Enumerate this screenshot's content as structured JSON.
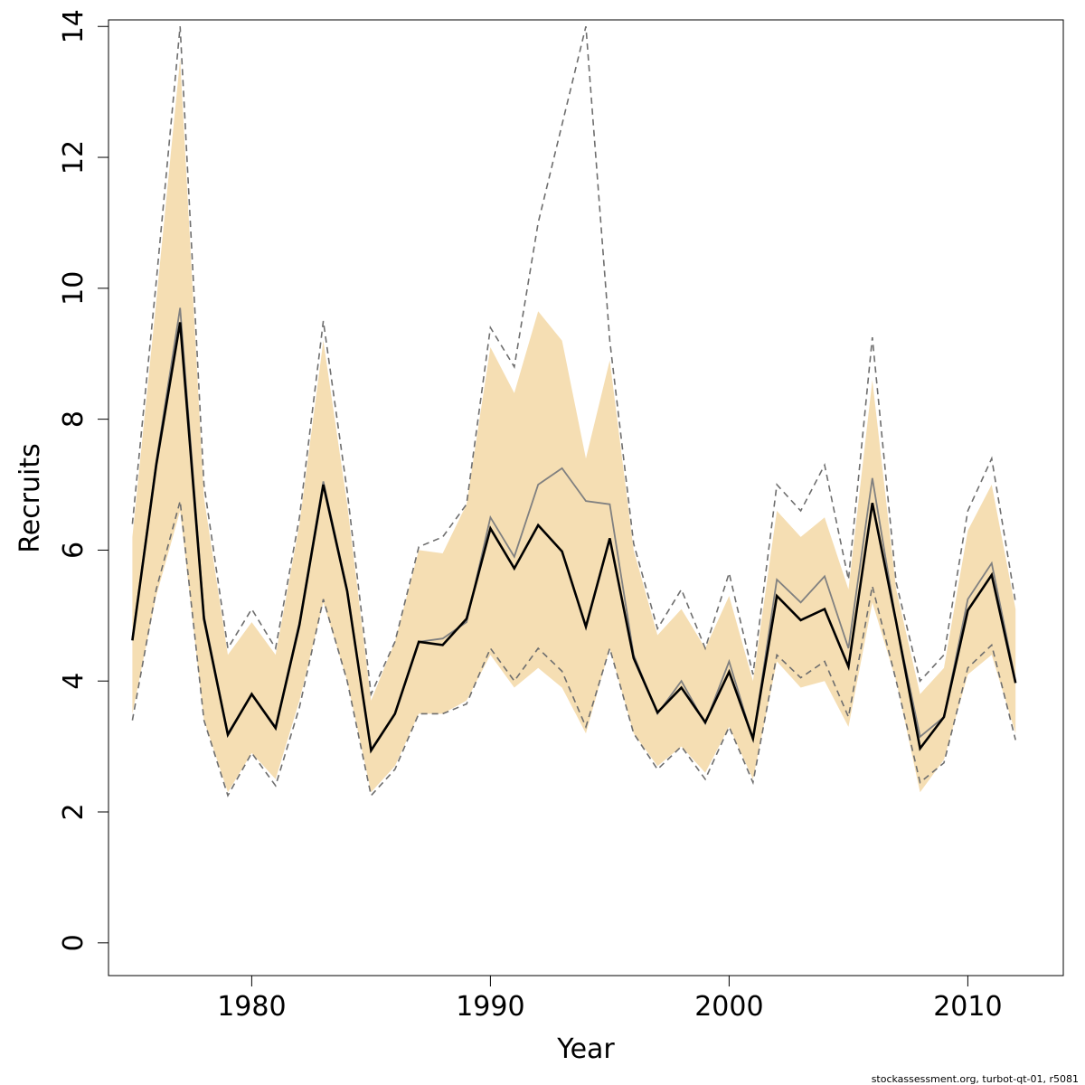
{
  "chart_data": {
    "type": "line",
    "title": "",
    "xlabel": "Year",
    "ylabel": "Recruits",
    "xlim": [
      1974,
      2014
    ],
    "ylim": [
      -0.5,
      14.1
    ],
    "x_ticks": [
      1980,
      1990,
      2000,
      2010
    ],
    "y_ticks": [
      0,
      2,
      4,
      6,
      8,
      10,
      12,
      14
    ],
    "grid": false,
    "legend": "none",
    "colors": {
      "band": "#f5deb3",
      "estimate": "#000000",
      "alt_estimate": "#808080",
      "dashed_bounds": "#6e6e6e"
    },
    "x": [
      1975,
      1976,
      1977,
      1978,
      1979,
      1980,
      1981,
      1982,
      1983,
      1984,
      1985,
      1986,
      1987,
      1988,
      1989,
      1990,
      1991,
      1992,
      1993,
      1994,
      1995,
      1996,
      1997,
      1998,
      1999,
      2000,
      2001,
      2002,
      2003,
      2004,
      2005,
      2006,
      2007,
      2008,
      2009,
      2010,
      2011,
      2012
    ],
    "series": [
      {
        "role": "band_upper",
        "values": [
          6.2,
          9.8,
          13.5,
          6.8,
          4.4,
          4.9,
          4.4,
          6.4,
          9.2,
          6.7,
          3.7,
          4.6,
          6.0,
          5.95,
          6.7,
          9.1,
          8.4,
          9.65,
          9.2,
          7.4,
          8.9,
          6.0,
          4.7,
          5.1,
          4.5,
          5.3,
          4.0,
          6.6,
          6.2,
          6.5,
          5.4,
          8.6,
          5.4,
          3.8,
          4.2,
          6.3,
          7.0,
          5.1
        ]
      },
      {
        "role": "band_lower",
        "values": [
          3.5,
          5.3,
          6.6,
          3.4,
          2.3,
          2.9,
          2.5,
          3.7,
          5.2,
          4.0,
          2.3,
          2.7,
          3.5,
          3.5,
          3.7,
          4.4,
          3.9,
          4.2,
          3.9,
          3.2,
          4.5,
          3.2,
          2.7,
          3.0,
          2.6,
          3.3,
          2.5,
          4.3,
          3.9,
          4.0,
          3.3,
          5.2,
          4.0,
          2.3,
          2.8,
          4.1,
          4.4,
          3.2
        ]
      },
      {
        "role": "upper_bound_dashed",
        "values": [
          6.4,
          10.1,
          14.0,
          7.0,
          4.5,
          5.1,
          4.5,
          6.5,
          9.5,
          6.9,
          3.8,
          4.6,
          6.05,
          6.2,
          6.7,
          9.4,
          8.8,
          11.0,
          12.5,
          14.0,
          9.2,
          6.1,
          4.8,
          5.4,
          4.5,
          5.65,
          4.1,
          7.0,
          6.6,
          7.3,
          5.55,
          9.25,
          5.5,
          4.0,
          4.4,
          6.6,
          7.4,
          5.2
        ]
      },
      {
        "role": "lower_bound_dashed",
        "values": [
          3.4,
          5.4,
          6.75,
          3.4,
          2.25,
          2.9,
          2.4,
          3.6,
          5.25,
          4.0,
          2.25,
          2.65,
          3.5,
          3.5,
          3.65,
          4.5,
          4.0,
          4.5,
          4.15,
          3.3,
          4.5,
          3.2,
          2.65,
          3.0,
          2.5,
          3.3,
          2.45,
          4.4,
          4.05,
          4.3,
          3.45,
          5.45,
          4.0,
          2.45,
          2.75,
          4.2,
          4.55,
          3.1
        ]
      },
      {
        "role": "alt_estimate_grey",
        "values": [
          4.65,
          7.35,
          9.7,
          5.0,
          3.2,
          3.8,
          3.3,
          4.9,
          7.05,
          5.4,
          2.95,
          3.5,
          4.6,
          4.65,
          4.9,
          6.5,
          5.9,
          7.0,
          7.25,
          6.75,
          6.7,
          4.4,
          3.5,
          4.0,
          3.35,
          4.3,
          3.1,
          5.55,
          5.2,
          5.6,
          4.5,
          7.1,
          4.9,
          3.15,
          3.45,
          5.25,
          5.8,
          4.0
        ]
      },
      {
        "role": "estimate",
        "values": [
          4.62,
          7.3,
          9.48,
          4.95,
          3.18,
          3.8,
          3.28,
          4.86,
          7.0,
          5.37,
          2.94,
          3.5,
          4.6,
          4.55,
          4.95,
          6.33,
          5.72,
          6.38,
          5.98,
          4.83,
          6.18,
          4.35,
          3.52,
          3.9,
          3.37,
          4.14,
          3.12,
          5.3,
          4.93,
          5.1,
          4.22,
          6.72,
          4.9,
          2.97,
          3.45,
          5.08,
          5.62,
          3.97
        ]
      }
    ],
    "credit": "stockassessment.org, turbot-qt-01, r5081"
  }
}
